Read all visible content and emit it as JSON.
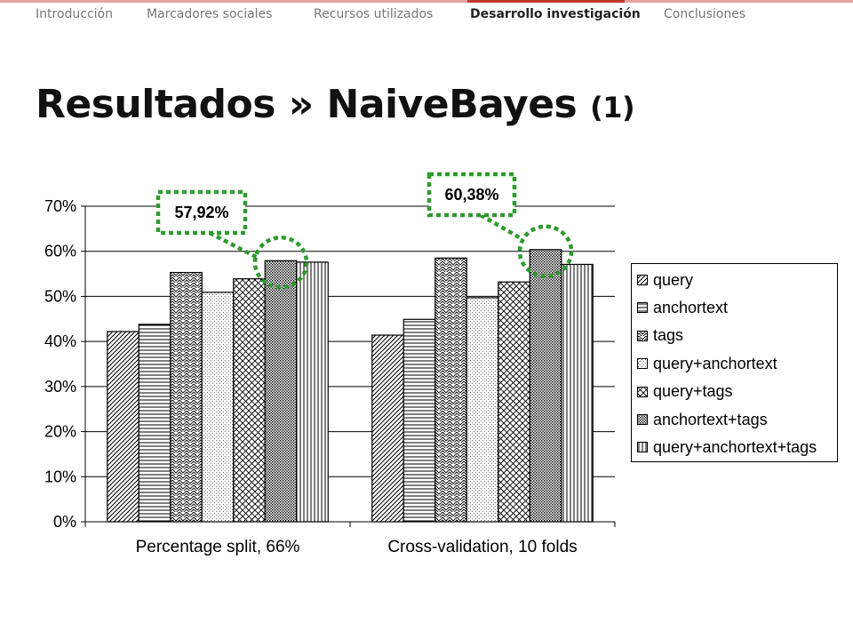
{
  "nav": {
    "tabs": [
      {
        "label": "Introducción",
        "active": false
      },
      {
        "label": "Marcadores sociales",
        "active": false
      },
      {
        "label": "Recursos utilizados",
        "active": false
      },
      {
        "label": "Desarrollo investigación",
        "active": true
      },
      {
        "label": "Conclusiones",
        "active": false
      }
    ],
    "accent_color": "#c0392b",
    "line_color": "#e8a59f"
  },
  "slide": {
    "title": "Resultados » NaiveBayes",
    "title_suffix": "(1)"
  },
  "chart_data": {
    "type": "bar",
    "categories": [
      "Percentage split, 66%",
      "Cross-validation, 10 folds"
    ],
    "series": [
      {
        "name": "query",
        "values": [
          42.2,
          41.4
        ],
        "pattern": "diag-right"
      },
      {
        "name": "anchortext",
        "values": [
          43.8,
          44.9
        ],
        "pattern": "horizontal"
      },
      {
        "name": "tags",
        "values": [
          55.3,
          58.5
        ],
        "pattern": "zigzag"
      },
      {
        "name": "query+anchortext",
        "values": [
          50.9,
          49.7
        ],
        "pattern": "dots-sparse"
      },
      {
        "name": "query+tags",
        "values": [
          53.9,
          53.2
        ],
        "pattern": "crosshatch"
      },
      {
        "name": "anchortext+tags",
        "values": [
          57.92,
          60.38
        ],
        "pattern": "dots-dense"
      },
      {
        "name": "query+anchortext+tags",
        "values": [
          57.6,
          57.1
        ],
        "pattern": "vertical"
      }
    ],
    "ylim": [
      0,
      70
    ],
    "yticks": [
      "0%",
      "10%",
      "20%",
      "30%",
      "40%",
      "50%",
      "60%",
      "70%"
    ],
    "grid": true,
    "legend_position": "right",
    "callouts": [
      {
        "label": "57,92%",
        "category": 0,
        "series": 5
      },
      {
        "label": "60,38%",
        "category": 1,
        "series": 5
      }
    ],
    "callout_color": "#2e9a2e"
  }
}
